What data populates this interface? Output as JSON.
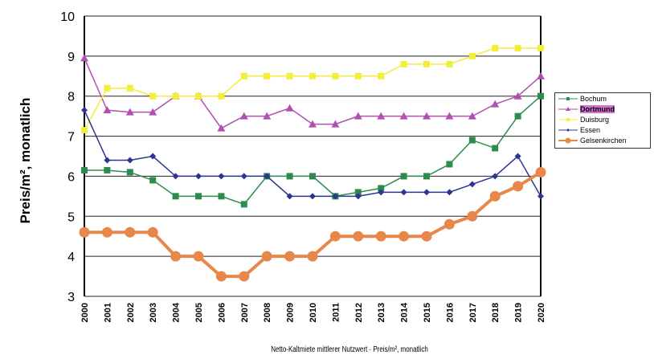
{
  "chart_data": {
    "type": "line",
    "title": "",
    "xlabel": "Netto-Kaltmiete mittlerer Nutzwert · Preis/m², monatlich",
    "ylabel": "Preis/m², monatlich",
    "ylim": [
      3,
      10
    ],
    "yticks": [
      "3",
      "4",
      "5",
      "6",
      "7",
      "8",
      "9",
      "10"
    ],
    "x": [
      "2000",
      "2001",
      "2002",
      "2003",
      "2004",
      "2005",
      "2006",
      "2007",
      "2008",
      "2009",
      "2010",
      "2011",
      "2012",
      "2013",
      "2014",
      "2015",
      "2016",
      "2017",
      "2018",
      "2019",
      "2020"
    ],
    "grid": true,
    "legend_position": "right",
    "series": [
      {
        "name": "Bochum",
        "color": "#2e8b4f",
        "marker": "square",
        "values": [
          6.15,
          6.15,
          6.1,
          5.9,
          5.5,
          5.5,
          5.5,
          5.3,
          6,
          6,
          6,
          5.5,
          5.6,
          5.7,
          6,
          6,
          6.3,
          6.9,
          6.7,
          7.5,
          8
        ]
      },
      {
        "name": "Dortmund",
        "color": "#b050b0",
        "marker": "triangle",
        "values": [
          8.95,
          7.65,
          7.6,
          7.6,
          8,
          8,
          7.2,
          7.5,
          7.5,
          7.7,
          7.3,
          7.3,
          7.5,
          7.5,
          7.5,
          7.5,
          7.5,
          7.5,
          7.8,
          8,
          8.5
        ]
      },
      {
        "name": "Duisburg",
        "color": "#f2ee3a",
        "marker": "square",
        "values": [
          7.15,
          8.2,
          8.2,
          8,
          8,
          8,
          8,
          8.5,
          8.5,
          8.5,
          8.5,
          8.5,
          8.5,
          8.5,
          8.8,
          8.8,
          8.8,
          9,
          9.2,
          9.2,
          9.2
        ]
      },
      {
        "name": "Essen",
        "color": "#2c3590",
        "marker": "diamond",
        "values": [
          7.65,
          6.4,
          6.4,
          6.5,
          6,
          6,
          6,
          6,
          6,
          5.5,
          5.5,
          5.5,
          5.5,
          5.6,
          5.6,
          5.6,
          5.6,
          5.8,
          6,
          6.5,
          5.5
        ]
      },
      {
        "name": "Gelsenkirchen",
        "color": "#e8874a",
        "marker": "circle",
        "values": [
          4.6,
          4.6,
          4.6,
          4.6,
          4,
          4,
          3.5,
          3.5,
          4,
          4,
          4,
          4.5,
          4.5,
          4.5,
          4.5,
          4.5,
          4.8,
          5,
          5.5,
          5.75,
          6.1
        ]
      }
    ]
  }
}
